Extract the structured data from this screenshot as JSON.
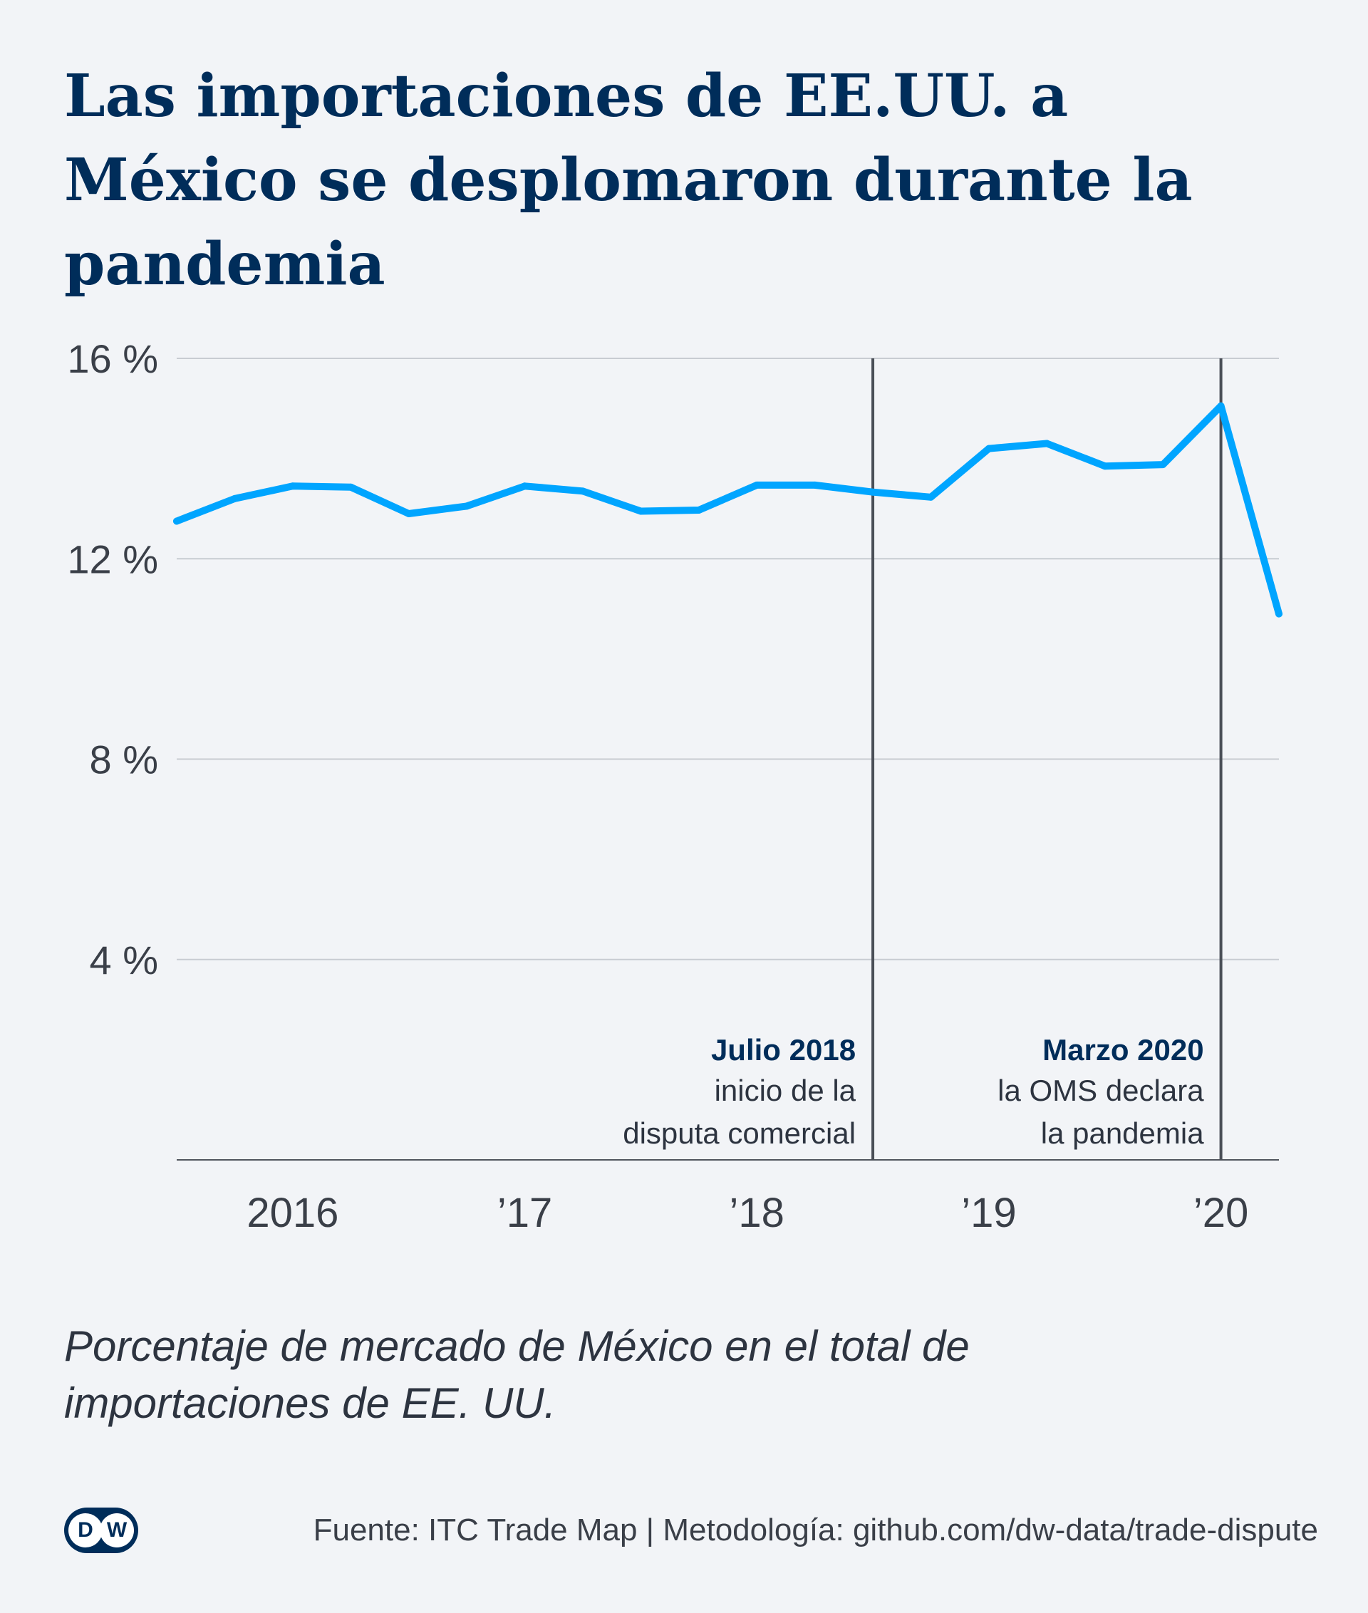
{
  "title": "Las importaciones de EE.UU. a México se desplomaron durante la pandemia",
  "subtitle": "Porcentaje de mercado de México en el total de importaciones de EE. UU.",
  "footer": {
    "logo_text": [
      "D",
      "W"
    ],
    "source": "Fuente: ITC Trade Map | Metodología: github.com/dw-data/trade-dispute"
  },
  "colors": {
    "background": "#f2f4f7",
    "line": "#00a5ff",
    "text_dark": "#002d5a",
    "gridline": "#c8ccd2",
    "annotation_line": "#4a4f57"
  },
  "chart_data": {
    "type": "line",
    "title": "",
    "xlabel": "",
    "ylabel": "",
    "ylim": [
      0,
      16
    ],
    "xlim": [
      "2015-07",
      "2020-04"
    ],
    "grid": true,
    "yticks": [
      {
        "value": 4,
        "label": "4 %"
      },
      {
        "value": 8,
        "label": "8 %"
      },
      {
        "value": 12,
        "label": "12 %"
      },
      {
        "value": 16,
        "label": "16 %"
      }
    ],
    "xticks": [
      {
        "date": "2016-01",
        "label": "2016"
      },
      {
        "date": "2017-01",
        "label": "’17"
      },
      {
        "date": "2018-01",
        "label": "’18"
      },
      {
        "date": "2019-01",
        "label": "’19"
      },
      {
        "date": "2020-01",
        "label": "’20"
      }
    ],
    "series": [
      {
        "name": "",
        "x": [
          "2015-07",
          "2015-10",
          "2016-01",
          "2016-04",
          "2016-07",
          "2016-10",
          "2017-01",
          "2017-04",
          "2017-07",
          "2017-10",
          "2018-01",
          "2018-04",
          "2018-07",
          "2018-10",
          "2019-01",
          "2019-04",
          "2019-07",
          "2019-10",
          "2020-01",
          "2020-04"
        ],
        "values": [
          12.75,
          13.2,
          13.45,
          13.43,
          12.9,
          13.05,
          13.45,
          13.35,
          12.95,
          12.97,
          13.47,
          13.47,
          13.33,
          13.23,
          14.2,
          14.3,
          13.85,
          13.88,
          15.05,
          10.9
        ]
      }
    ],
    "annotations": [
      {
        "date": "2018-07",
        "head": "Julio 2018",
        "lines": [
          "inicio de la",
          "disputa comercial"
        ]
      },
      {
        "date": "2020-01",
        "head": "Marzo 2020",
        "lines": [
          "la OMS declara",
          "la pandemia"
        ]
      }
    ]
  }
}
